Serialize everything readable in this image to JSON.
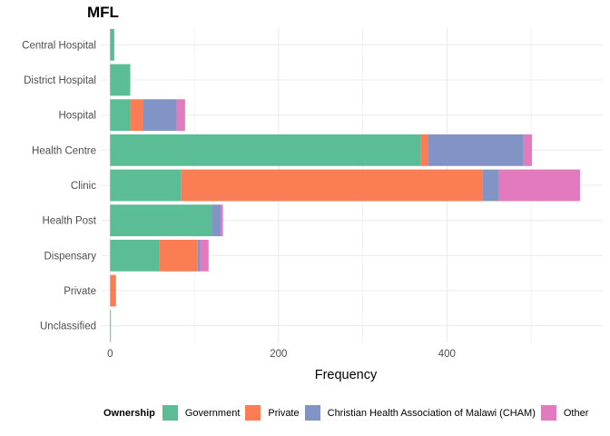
{
  "chart_data": {
    "type": "bar",
    "orientation": "horizontal",
    "stacked": true,
    "title": "MFL",
    "xlabel": "Frequency",
    "ylabel": "",
    "xlim": [
      -10,
      585
    ],
    "xticks": [
      0,
      200,
      400
    ],
    "grid": true,
    "legend_position": "bottom",
    "legend_title": "Ownership",
    "categories": [
      "Unclassified",
      "Private",
      "Dispensary",
      "Health Post",
      "Clinic",
      "Health Centre",
      "Hospital",
      "District Hospital",
      "Central Hospital"
    ],
    "series": [
      {
        "name": "Government",
        "color": "#5bbd96",
        "values": [
          1,
          0,
          58,
          121,
          84,
          369,
          24,
          24,
          5
        ]
      },
      {
        "name": "Private",
        "color": "#fb7d54",
        "values": [
          0,
          7,
          46,
          0,
          358,
          9,
          15,
          0,
          0
        ]
      },
      {
        "name": "Christian Health Association of Malawi (CHAM)",
        "color": "#8294c5",
        "values": [
          0,
          0,
          3,
          11,
          19,
          113,
          40,
          0,
          0
        ]
      },
      {
        "name": "Other",
        "color": "#e27abd",
        "values": [
          0,
          0,
          10,
          2,
          97,
          10,
          10,
          0,
          0
        ]
      }
    ]
  }
}
